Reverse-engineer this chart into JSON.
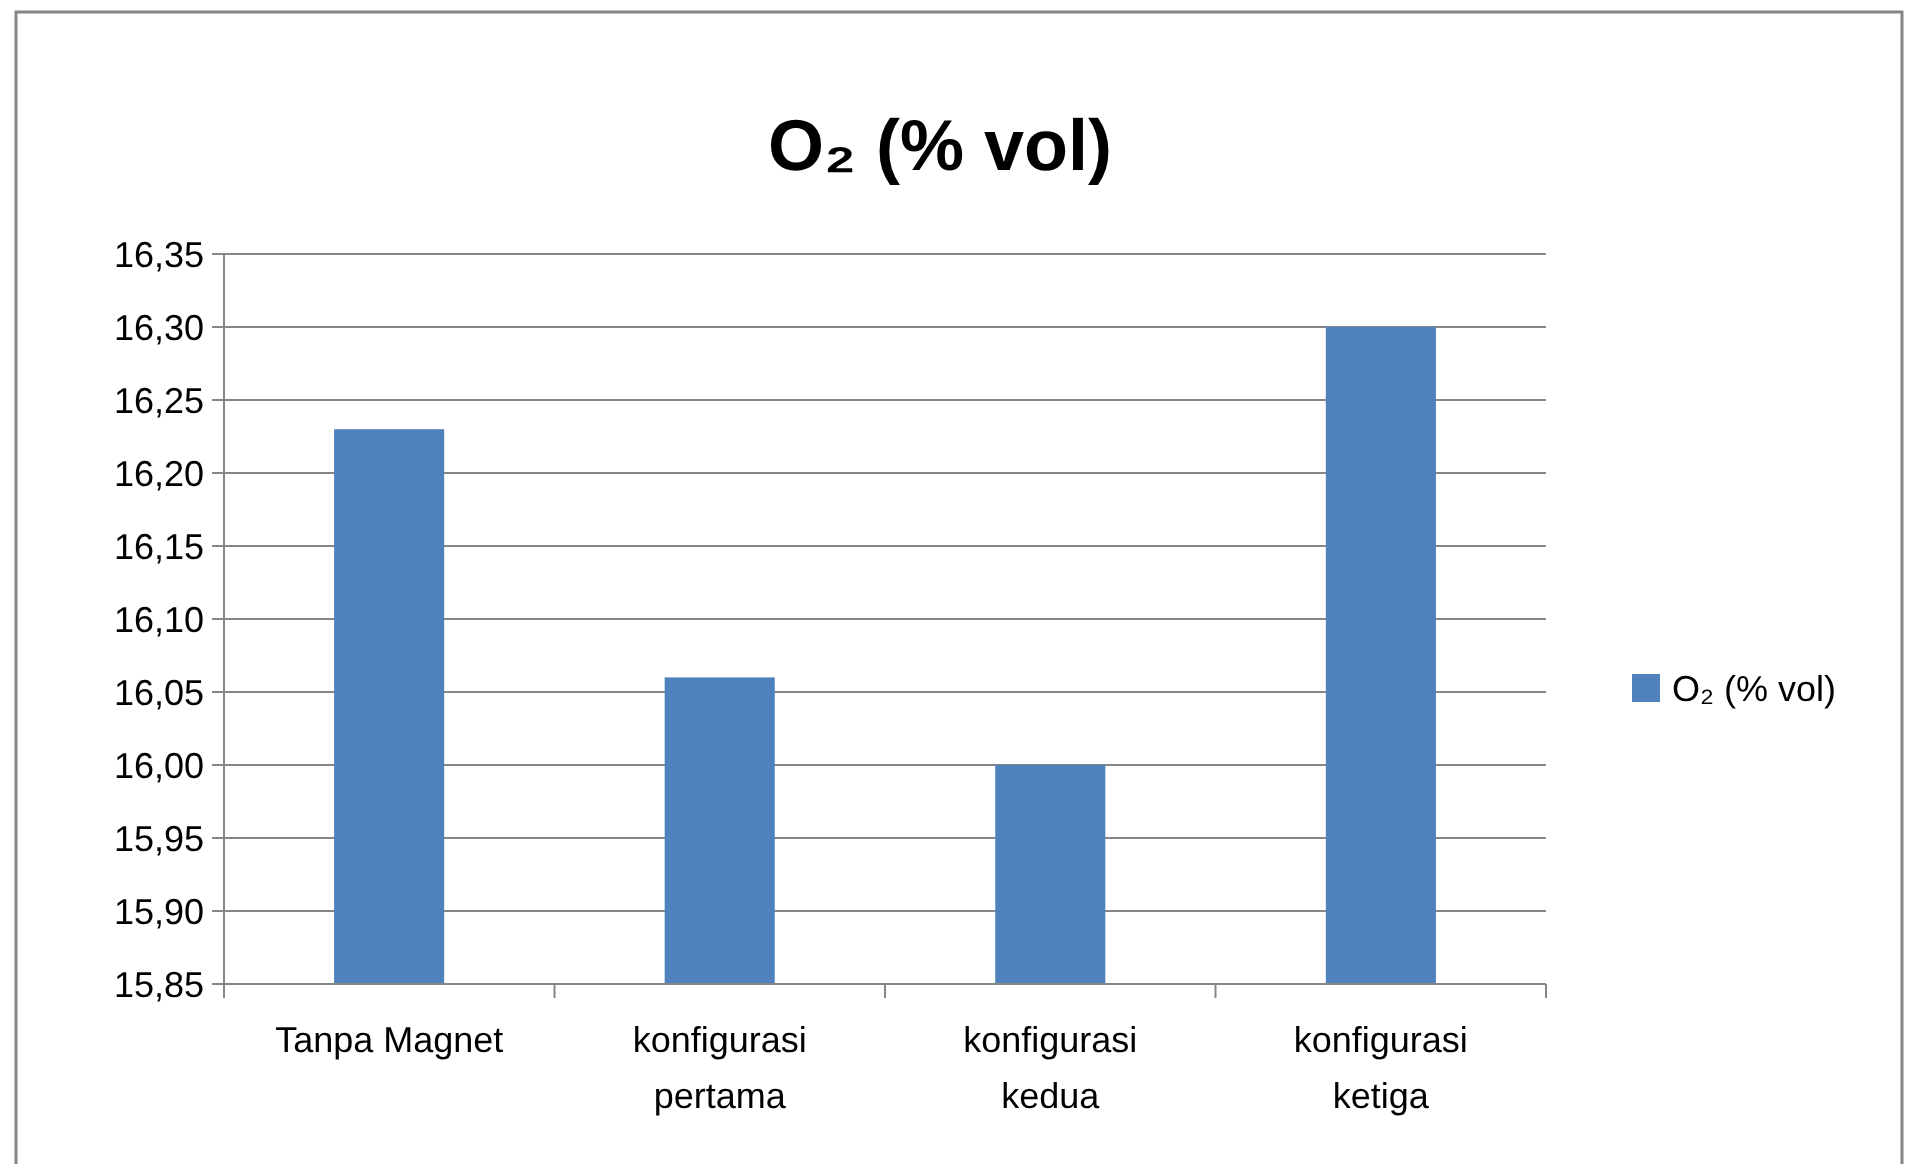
{
  "chart_data": {
    "type": "bar",
    "title": "O₂ (% vol)",
    "categories": [
      "Tanpa Magnet",
      "konfigurasi pertama",
      "konfigurasi kedua",
      "konfigurasi ketiga"
    ],
    "series": [
      {
        "name": "O₂ (% vol)",
        "color": "#4f81bd",
        "values": [
          16.23,
          16.06,
          16.0,
          16.3
        ]
      }
    ],
    "ylim": [
      15.85,
      16.35
    ],
    "yticks": [
      {
        "value": 15.85,
        "label": "15,85"
      },
      {
        "value": 15.9,
        "label": "15,90"
      },
      {
        "value": 15.95,
        "label": "15,95"
      },
      {
        "value": 16.0,
        "label": "16,00"
      },
      {
        "value": 16.05,
        "label": "16,05"
      },
      {
        "value": 16.1,
        "label": "16,10"
      },
      {
        "value": 16.15,
        "label": "16,15"
      },
      {
        "value": 16.2,
        "label": "16,20"
      },
      {
        "value": 16.25,
        "label": "16,25"
      },
      {
        "value": 16.3,
        "label": "16,30"
      },
      {
        "value": 16.35,
        "label": "16,35"
      }
    ],
    "grid": "y",
    "legend": "right"
  }
}
